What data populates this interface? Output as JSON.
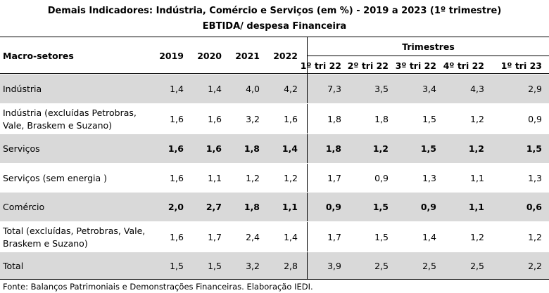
{
  "title_line1": "Demais Indicadores: Indústria, Comércio e Serviços (em %) - 2019 a 2023 (1º trimestre)",
  "title_line2": "EBTIDA/ despesa Financeira",
  "header": {
    "sector_label": "Macro-setores",
    "years": [
      "2019",
      "2020",
      "2021",
      "2022"
    ],
    "trimestres_label": "Trimestres",
    "quarters": [
      "1º tri 22",
      "2º tri 22",
      "3º tri 22",
      "4º tri 22",
      "1º tri 23"
    ]
  },
  "rows": [
    {
      "label": [
        "Indústria"
      ],
      "values": [
        "1,4",
        "1,4",
        "4,0",
        "4,2",
        "7,3",
        "3,5",
        "3,4",
        "4,3",
        "2,9"
      ],
      "shaded": true,
      "bold": false
    },
    {
      "label": [
        "Indústria  (excluídas Petrobras,",
        "Vale, Braskem e Suzano)"
      ],
      "values": [
        "1,6",
        "1,6",
        "3,2",
        "1,6",
        "1,8",
        "1,8",
        "1,5",
        "1,2",
        "0,9"
      ],
      "shaded": false,
      "bold": false
    },
    {
      "label": [
        "Serviços"
      ],
      "values": [
        "1,6",
        "1,6",
        "1,8",
        "1,4",
        "1,8",
        "1,2",
        "1,5",
        "1,2",
        "1,5"
      ],
      "shaded": true,
      "bold": true
    },
    {
      "label": [
        "Serviços (sem energia )"
      ],
      "values": [
        "1,6",
        "1,1",
        "1,2",
        "1,2",
        "1,7",
        "0,9",
        "1,3",
        "1,1",
        "1,3"
      ],
      "shaded": false,
      "bold": false
    },
    {
      "label": [
        "Comércio"
      ],
      "values": [
        "2,0",
        "2,7",
        "1,8",
        "1,1",
        "0,9",
        "1,5",
        "0,9",
        "1,1",
        "0,6"
      ],
      "shaded": true,
      "bold": true
    },
    {
      "label": [
        "Total (excluídas, Petrobras, Vale,",
        "Braskem e Suzano)"
      ],
      "values": [
        "1,6",
        "1,7",
        "2,4",
        "1,4",
        "1,7",
        "1,5",
        "1,4",
        "1,2",
        "1,2"
      ],
      "shaded": false,
      "bold": false
    },
    {
      "label": [
        "Total"
      ],
      "values": [
        "1,5",
        "1,5",
        "3,2",
        "2,8",
        "3,9",
        "2,5",
        "2,5",
        "2,5",
        "2,2"
      ],
      "shaded": true,
      "bold": false
    }
  ],
  "source": "Fonte: Balanços Patrimoniais e Demonstrações Financeiras. Elaboração IEDI."
}
